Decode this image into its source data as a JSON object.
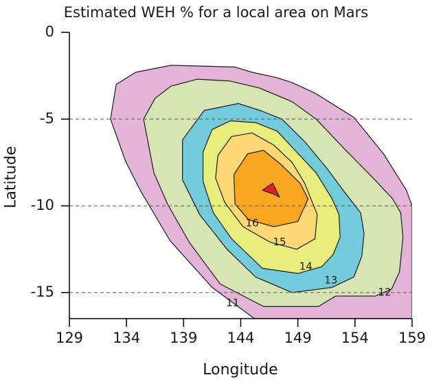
{
  "chart_data": {
    "type": "contour",
    "title": "Estimated WEH % for a local area on Mars",
    "xlabel": "Longitude",
    "ylabel": "Latitude",
    "xlim": [
      129,
      159
    ],
    "ylim": [
      -16.5,
      0
    ],
    "x_ticks": [
      129,
      134,
      139,
      144,
      149,
      154,
      159
    ],
    "y_ticks": [
      0,
      -5,
      -10,
      -15
    ],
    "y_gridlines": [
      -5,
      -10,
      -15
    ],
    "grid_style": "dashed horizontal",
    "levels": [
      {
        "value": 11,
        "label": "11",
        "color": "#e4b4d8",
        "label_pos": [
          143.3,
          -15.6
        ],
        "polygon": [
          [
            133.1,
            -3.0
          ],
          [
            134.8,
            -2.3
          ],
          [
            137.9,
            -1.9
          ],
          [
            143.5,
            -2.0
          ],
          [
            145.0,
            -2.3
          ],
          [
            147.1,
            -2.6
          ],
          [
            148.5,
            -2.9
          ],
          [
            150.5,
            -3.5
          ],
          [
            153.9,
            -4.9
          ],
          [
            156.5,
            -7.0
          ],
          [
            158.5,
            -9.1
          ],
          [
            159.0,
            -10.0
          ],
          [
            159.0,
            -16.5
          ],
          [
            145.2,
            -16.5
          ],
          [
            141.5,
            -14.7
          ],
          [
            137.8,
            -12.0
          ],
          [
            135.2,
            -9.1
          ],
          [
            133.9,
            -7.4
          ],
          [
            132.6,
            -5.0
          ]
        ]
      },
      {
        "value": 12,
        "label": "12",
        "color": "#d7e5b5",
        "label_pos": [
          156.6,
          -15.0
        ],
        "polygon": [
          [
            135.5,
            -5.0
          ],
          [
            136.5,
            -3.8
          ],
          [
            137.9,
            -3.1
          ],
          [
            140.2,
            -2.7
          ],
          [
            143.0,
            -2.8
          ],
          [
            145.6,
            -3.2
          ],
          [
            148.5,
            -4.0
          ],
          [
            150.6,
            -5.0
          ],
          [
            153.2,
            -6.8
          ],
          [
            155.6,
            -8.4
          ],
          [
            157.3,
            -9.6
          ],
          [
            158.0,
            -10.4
          ],
          [
            158.2,
            -11.8
          ],
          [
            157.9,
            -13.8
          ],
          [
            157.2,
            -14.8
          ],
          [
            155.8,
            -15.2
          ],
          [
            152.3,
            -15.2
          ],
          [
            150.8,
            -15.8
          ],
          [
            146.0,
            -15.8
          ],
          [
            142.2,
            -14.5
          ],
          [
            139.5,
            -12.1
          ],
          [
            137.6,
            -9.9
          ],
          [
            136.4,
            -8.1
          ]
        ]
      },
      {
        "value": 13,
        "label": "13",
        "color": "#73cbdb",
        "label_pos": [
          151.9,
          -14.3
        ],
        "polygon": [
          [
            138.9,
            -6.2
          ],
          [
            140.8,
            -4.5
          ],
          [
            143.8,
            -4.1
          ],
          [
            145.7,
            -4.5
          ],
          [
            147.6,
            -5.0
          ],
          [
            149.6,
            -6.3
          ],
          [
            151.5,
            -7.8
          ],
          [
            153.2,
            -9.3
          ],
          [
            154.5,
            -10.4
          ],
          [
            154.8,
            -11.6
          ],
          [
            154.6,
            -12.9
          ],
          [
            153.9,
            -14.1
          ],
          [
            152.0,
            -14.7
          ],
          [
            148.5,
            -15.0
          ],
          [
            145.3,
            -14.1
          ],
          [
            142.8,
            -12.5
          ],
          [
            140.4,
            -10.5
          ],
          [
            138.9,
            -8.5
          ]
        ]
      },
      {
        "value": 14,
        "label": "14",
        "color": "#e8ed7b",
        "label_pos": [
          149.7,
          -13.5
        ],
        "polygon": [
          [
            140.7,
            -6.9
          ],
          [
            141.5,
            -5.6
          ],
          [
            143.1,
            -5.1
          ],
          [
            145.3,
            -5.2
          ],
          [
            147.2,
            -5.7
          ],
          [
            148.9,
            -6.9
          ],
          [
            150.6,
            -8.1
          ],
          [
            152.0,
            -9.6
          ],
          [
            152.6,
            -10.5
          ],
          [
            152.7,
            -11.8
          ],
          [
            152.1,
            -12.8
          ],
          [
            151.1,
            -13.5
          ],
          [
            149.0,
            -13.9
          ],
          [
            145.9,
            -13.6
          ],
          [
            143.2,
            -11.9
          ],
          [
            141.6,
            -10.4
          ],
          [
            140.7,
            -8.6
          ]
        ]
      },
      {
        "value": 15,
        "label": "15",
        "color": "#fed872",
        "label_pos": [
          147.4,
          -12.1
        ],
        "polygon": [
          [
            142.0,
            -7.1
          ],
          [
            143.2,
            -6.0
          ],
          [
            145.0,
            -5.8
          ],
          [
            146.9,
            -6.5
          ],
          [
            148.5,
            -7.5
          ],
          [
            149.6,
            -8.7
          ],
          [
            150.7,
            -10.5
          ],
          [
            150.5,
            -11.9
          ],
          [
            148.9,
            -12.5
          ],
          [
            146.6,
            -12.1
          ],
          [
            144.2,
            -11.2
          ],
          [
            142.6,
            -9.8
          ],
          [
            141.8,
            -8.4
          ]
        ]
      },
      {
        "value": 16,
        "label": "16",
        "color": "#f8a520",
        "label_pos": [
          145.0,
          -11.0
        ],
        "polygon": [
          [
            143.4,
            -8.2
          ],
          [
            144.6,
            -7.0
          ],
          [
            146.0,
            -6.8
          ],
          [
            147.5,
            -7.6
          ],
          [
            149.2,
            -8.7
          ],
          [
            149.9,
            -9.6
          ],
          [
            149.0,
            -10.9
          ],
          [
            146.9,
            -11.2
          ],
          [
            144.7,
            -10.8
          ],
          [
            143.5,
            -9.9
          ]
        ]
      },
      {
        "value": 17,
        "label": "",
        "color": "#e81e24",
        "label_pos": null,
        "polygon": [
          [
            145.9,
            -9.1
          ],
          [
            146.8,
            -8.7
          ],
          [
            147.4,
            -9.5
          ],
          [
            146.8,
            -9.3
          ]
        ]
      }
    ]
  }
}
